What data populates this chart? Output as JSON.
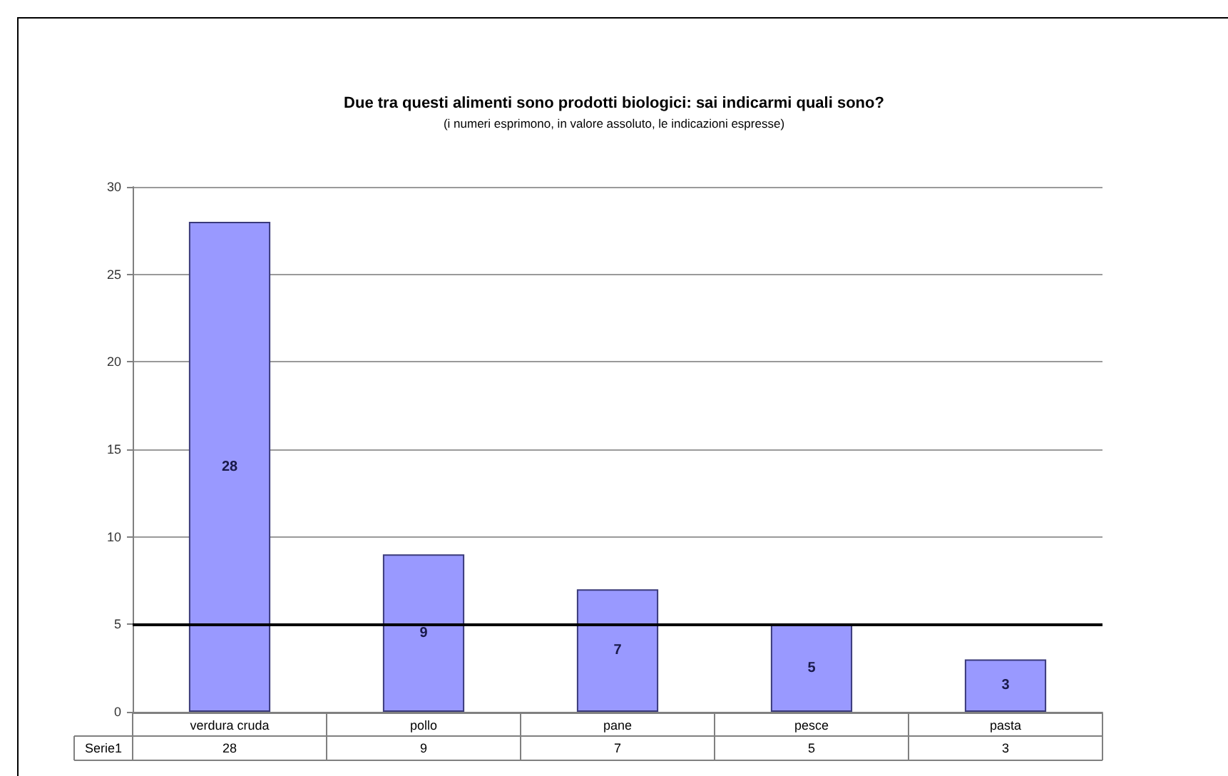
{
  "chart_data": {
    "type": "bar",
    "title": "Due tra questi alimenti sono prodotti biologici: sai indicarmi quali sono?",
    "subtitle": "(i numeri esprimono, in valore assoluto, le indicazioni espresse)",
    "categories": [
      "verdura cruda",
      "pollo",
      "pane",
      "pesce",
      "pasta"
    ],
    "series": [
      {
        "name": "Serie1",
        "color": "#9999ff",
        "values": [
          28,
          9,
          7,
          5,
          3
        ]
      }
    ],
    "ylim": [
      0,
      30
    ],
    "yticks": [
      0,
      5,
      10,
      15,
      20,
      25,
      30
    ],
    "grid": "y",
    "data_labels": true,
    "annotations": [
      "28",
      "9",
      "7",
      "5",
      "3"
    ],
    "ref_lines": [
      {
        "axis": "y",
        "value": 5,
        "color": "#000000"
      }
    ]
  }
}
